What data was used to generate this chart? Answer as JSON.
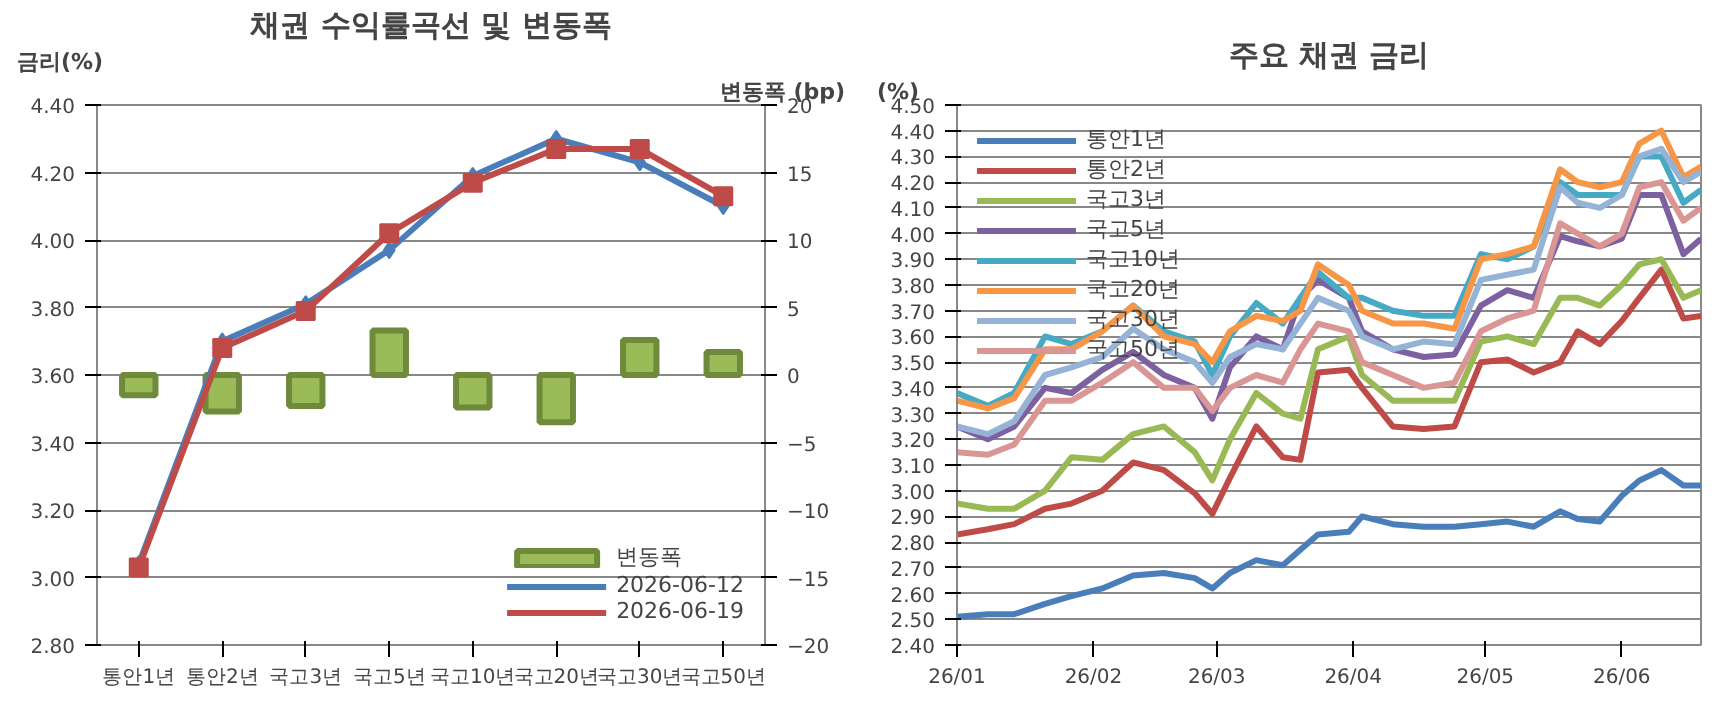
{
  "chart_data": [
    {
      "type": "line",
      "title": "채권 수익률곡선 및 변동폭",
      "ylabel": "금리(%)",
      "y2label": "변동폭 (bp)",
      "categories": [
        "통안1년",
        "통안2년",
        "국고3년",
        "국고5년",
        "국고10년",
        "국고20년",
        "국고30년",
        "국고50년"
      ],
      "series": [
        {
          "name": "변동폭",
          "type": "bar",
          "axis": "y2",
          "color": "#9bbb59",
          "values": [
            -1.5,
            -2.7,
            -2.3,
            3.3,
            -2.4,
            -3.5,
            2.6,
            1.7
          ]
        },
        {
          "name": "2026-06-12",
          "type": "line",
          "color": "#4a7ebb",
          "marker": "diamond",
          "values": [
            3.04,
            3.7,
            3.81,
            3.97,
            4.19,
            4.3,
            4.23,
            4.1
          ]
        },
        {
          "name": "2026-06-19",
          "type": "line",
          "color": "#be4b48",
          "marker": "square",
          "values": [
            3.03,
            3.68,
            3.79,
            4.02,
            4.17,
            4.27,
            4.27,
            4.13
          ]
        }
      ],
      "ylim": [
        2.8,
        4.4
      ],
      "yticks": [
        {
          "value": 2.8,
          "label": "2.80"
        },
        {
          "value": 3.0,
          "label": "3.00"
        },
        {
          "value": 3.2,
          "label": "3.20"
        },
        {
          "value": 3.4,
          "label": "3.40"
        },
        {
          "value": 3.6,
          "label": "3.60"
        },
        {
          "value": 3.8,
          "label": "3.80"
        },
        {
          "value": 4.0,
          "label": "4.00"
        },
        {
          "value": 4.2,
          "label": "4.20"
        },
        {
          "value": 4.4,
          "label": "4.40"
        }
      ],
      "y2lim": [
        -20,
        20
      ],
      "y2ticks": [
        -20,
        -15,
        -10,
        -5,
        0,
        5,
        10,
        15,
        20
      ],
      "grid": "y",
      "legend": "bottom right"
    },
    {
      "type": "line",
      "title": "주요 채권 금리",
      "ylabel": "(%)",
      "x": [
        "2026-01-01",
        "2026-01-08",
        "2026-01-14",
        "2026-01-21",
        "2026-01-27",
        "2026-02-03",
        "2026-02-10",
        "2026-02-17",
        "2026-02-24",
        "2026-02-28",
        "2026-03-04",
        "2026-03-10",
        "2026-03-16",
        "2026-03-20",
        "2026-03-24",
        "2026-03-31",
        "2026-04-03",
        "2026-04-10",
        "2026-04-17",
        "2026-04-24",
        "2026-04-30",
        "2026-05-06",
        "2026-05-12",
        "2026-05-18",
        "2026-05-22",
        "2026-05-27",
        "2026-06-01",
        "2026-06-05",
        "2026-06-10",
        "2026-06-15",
        "2026-06-19"
      ],
      "series": [
        {
          "name": "통안1년",
          "color": "#4a7ebb",
          "values": [
            2.51,
            2.52,
            2.52,
            2.56,
            2.59,
            2.62,
            2.67,
            2.68,
            2.66,
            2.62,
            2.68,
            2.73,
            2.71,
            2.77,
            2.83,
            2.84,
            2.9,
            2.87,
            2.86,
            2.86,
            2.87,
            2.88,
            2.86,
            2.92,
            2.89,
            2.88,
            2.98,
            3.04,
            3.08,
            3.02,
            3.02
          ]
        },
        {
          "name": "통안2년",
          "color": "#be4b48",
          "values": [
            2.83,
            2.85,
            2.87,
            2.93,
            2.95,
            3.0,
            3.11,
            3.08,
            2.99,
            2.91,
            3.05,
            3.25,
            3.13,
            3.12,
            3.46,
            3.47,
            3.4,
            3.25,
            3.24,
            3.25,
            3.5,
            3.51,
            3.46,
            3.5,
            3.62,
            3.57,
            3.66,
            3.75,
            3.86,
            3.67,
            3.68
          ]
        },
        {
          "name": "국고3년",
          "color": "#98b954",
          "values": [
            2.95,
            2.93,
            2.93,
            3.0,
            3.13,
            3.12,
            3.22,
            3.25,
            3.15,
            3.04,
            3.2,
            3.38,
            3.3,
            3.28,
            3.55,
            3.6,
            3.45,
            3.35,
            3.35,
            3.35,
            3.58,
            3.6,
            3.57,
            3.75,
            3.75,
            3.72,
            3.8,
            3.88,
            3.9,
            3.75,
            3.78
          ]
        },
        {
          "name": "국고5년",
          "color": "#7d60a0",
          "values": [
            3.25,
            3.2,
            3.25,
            3.4,
            3.38,
            3.47,
            3.54,
            3.45,
            3.4,
            3.28,
            3.48,
            3.6,
            3.55,
            3.75,
            3.82,
            3.75,
            3.62,
            3.55,
            3.52,
            3.53,
            3.72,
            3.78,
            3.75,
            3.99,
            3.97,
            3.95,
            3.98,
            4.15,
            4.15,
            3.92,
            3.98
          ]
        },
        {
          "name": "국고10년",
          "color": "#46aac5",
          "values": [
            3.38,
            3.33,
            3.38,
            3.6,
            3.57,
            3.62,
            3.72,
            3.62,
            3.58,
            3.45,
            3.6,
            3.73,
            3.65,
            3.75,
            3.85,
            3.75,
            3.75,
            3.7,
            3.68,
            3.68,
            3.92,
            3.9,
            3.95,
            4.2,
            4.15,
            4.15,
            4.15,
            4.3,
            4.3,
            4.12,
            4.17
          ]
        },
        {
          "name": "국고20년",
          "color": "#f79646",
          "values": [
            3.35,
            3.32,
            3.36,
            3.55,
            3.55,
            3.62,
            3.72,
            3.6,
            3.57,
            3.5,
            3.62,
            3.68,
            3.66,
            3.7,
            3.88,
            3.8,
            3.7,
            3.65,
            3.65,
            3.63,
            3.9,
            3.92,
            3.95,
            4.25,
            4.2,
            4.18,
            4.2,
            4.35,
            4.4,
            4.22,
            4.26
          ]
        },
        {
          "name": "국고30년",
          "color": "#95b3d7",
          "values": [
            3.25,
            3.22,
            3.27,
            3.45,
            3.48,
            3.52,
            3.63,
            3.55,
            3.5,
            3.42,
            3.52,
            3.57,
            3.55,
            3.65,
            3.75,
            3.7,
            3.6,
            3.55,
            3.58,
            3.57,
            3.82,
            3.84,
            3.86,
            4.18,
            4.12,
            4.1,
            4.15,
            4.3,
            4.33,
            4.2,
            4.24
          ]
        },
        {
          "name": "국고50년",
          "color": "#d99694",
          "values": [
            3.15,
            3.14,
            3.18,
            3.35,
            3.35,
            3.42,
            3.5,
            3.4,
            3.4,
            3.31,
            3.4,
            3.45,
            3.42,
            3.55,
            3.65,
            3.62,
            3.5,
            3.45,
            3.4,
            3.42,
            3.62,
            3.67,
            3.7,
            4.04,
            4.0,
            3.95,
            4.0,
            4.18,
            4.2,
            4.05,
            4.1
          ]
        }
      ],
      "xlim": [
        "2026-01-01",
        "2026-06-19"
      ],
      "xticks": [
        {
          "value": "2026-01-01",
          "label": "26/01"
        },
        {
          "value": "2026-02-01",
          "label": "26/02"
        },
        {
          "value": "2026-03-01",
          "label": "26/03"
        },
        {
          "value": "2026-04-01",
          "label": "26/04"
        },
        {
          "value": "2026-05-01",
          "label": "26/05"
        },
        {
          "value": "2026-06-01",
          "label": "26/06"
        }
      ],
      "ylim": [
        2.4,
        4.5
      ],
      "yticks": [
        {
          "value": 2.4,
          "label": "2.40"
        },
        {
          "value": 2.5,
          "label": "2.50"
        },
        {
          "value": 2.6,
          "label": "2.60"
        },
        {
          "value": 2.7,
          "label": "2.70"
        },
        {
          "value": 2.8,
          "label": "2.80"
        },
        {
          "value": 2.9,
          "label": "2.90"
        },
        {
          "value": 3.0,
          "label": "3.00"
        },
        {
          "value": 3.1,
          "label": "3.10"
        },
        {
          "value": 3.2,
          "label": "3.20"
        },
        {
          "value": 3.3,
          "label": "3.30"
        },
        {
          "value": 3.4,
          "label": "3.40"
        },
        {
          "value": 3.5,
          "label": "3.50"
        },
        {
          "value": 3.6,
          "label": "3.60"
        },
        {
          "value": 3.7,
          "label": "3.70"
        },
        {
          "value": 3.8,
          "label": "3.80"
        },
        {
          "value": 3.9,
          "label": "3.90"
        },
        {
          "value": 4.0,
          "label": "4.00"
        },
        {
          "value": 4.1,
          "label": "4.10"
        },
        {
          "value": 4.2,
          "label": "4.20"
        },
        {
          "value": 4.3,
          "label": "4.30"
        },
        {
          "value": 4.4,
          "label": "4.40"
        },
        {
          "value": 4.5,
          "label": "4.50"
        }
      ],
      "grid": "y",
      "legend": "top left"
    }
  ]
}
